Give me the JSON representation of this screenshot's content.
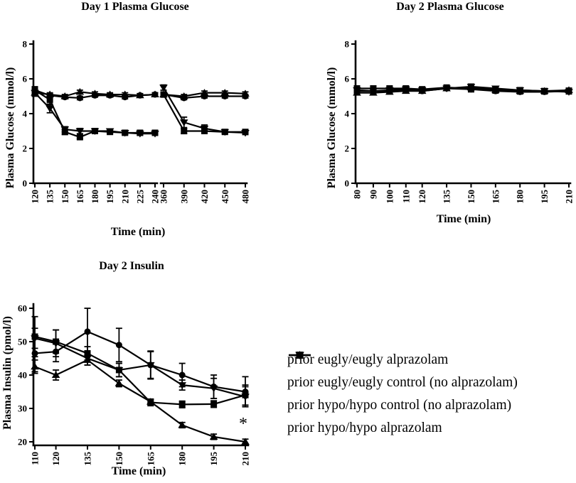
{
  "figure": {
    "background": "#ffffff",
    "line_color": "#000000"
  },
  "legend": {
    "items": [
      {
        "marker": "circle",
        "label": "prior eugly/eugly alprazolam"
      },
      {
        "marker": "triangle-up",
        "label": "prior eugly/eugly control (no alprazolam)"
      },
      {
        "marker": "triangle-down",
        "label": "prior hypo/hypo control (no alprazolam)"
      },
      {
        "marker": "square",
        "label": "prior hypo/hypo alprazolam"
      }
    ]
  },
  "chart_data": [
    {
      "id": "day1-plasma-glucose",
      "type": "line",
      "title": "Day 1 Plasma Glucose",
      "xlabel": "Time (min)",
      "ylabel": "Plasma Glucose (mmol/l)",
      "ylim": [
        0,
        8
      ],
      "yticks": [
        0,
        2,
        4,
        6,
        8
      ],
      "x_axis_break": true,
      "x_segments": [
        [
          120,
          135,
          150,
          165,
          180,
          195,
          210,
          225,
          240
        ],
        [
          360,
          390,
          420,
          450,
          480
        ]
      ],
      "series": [
        {
          "name": "prior eugly/eugly alprazolam",
          "marker": "circle",
          "y": [
            [
              5.35,
              5.05,
              4.95,
              4.9,
              5.05,
              5.05,
              4.95,
              5.05,
              5.1
            ],
            [
              5.1,
              4.9,
              5.0,
              5.0,
              5.0
            ]
          ],
          "err": [
            [
              0.15,
              0.1,
              0.1,
              0.1,
              0.1,
              0.1,
              0.1,
              0.1,
              0.1
            ],
            [
              0.1,
              0.1,
              0.1,
              0.1,
              0.1
            ]
          ]
        },
        {
          "name": "prior eugly/eugly control (no alprazolam)",
          "marker": "triangle-up",
          "y": [
            [
              5.2,
              5.1,
              5.0,
              5.25,
              5.15,
              5.1,
              5.1,
              5.05,
              5.1
            ],
            [
              5.1,
              5.0,
              5.2,
              5.2,
              5.15
            ]
          ],
          "err": [
            [
              0.15,
              0.1,
              0.1,
              0.1,
              0.1,
              0.1,
              0.1,
              0.1,
              0.1
            ],
            [
              0.1,
              0.1,
              0.1,
              0.1,
              0.1
            ]
          ]
        },
        {
          "name": "prior hypo/hypo control (no alprazolam)",
          "marker": "triangle-down",
          "y": [
            [
              5.2,
              4.3,
              3.1,
              3.0,
              3.0,
              3.0,
              2.9,
              2.85,
              2.85
            ],
            [
              5.5,
              3.5,
              3.15,
              2.95,
              2.9
            ]
          ],
          "err": [
            [
              0.2,
              0.25,
              0.15,
              0.15,
              0.1,
              0.1,
              0.1,
              0.1,
              0.1
            ],
            [
              0.15,
              0.3,
              0.2,
              0.1,
              0.1
            ]
          ]
        },
        {
          "name": "prior hypo/hypo alprazolam",
          "marker": "square",
          "y": [
            [
              5.35,
              4.8,
              2.95,
              2.65,
              3.0,
              2.95,
              2.9,
              2.9,
              2.9
            ],
            [
              5.1,
              3.0,
              3.0,
              2.95,
              2.95
            ]
          ],
          "err": [
            [
              0.2,
              0.3,
              0.15,
              0.1,
              0.1,
              0.1,
              0.1,
              0.1,
              0.1
            ],
            [
              0.15,
              0.15,
              0.1,
              0.1,
              0.1
            ]
          ]
        }
      ]
    },
    {
      "id": "day2-plasma-glucose",
      "type": "line",
      "title": "Day 2 Plasma Glucose",
      "xlabel": "Time (min)",
      "ylabel": "Plasma Glucose (mmol/l)",
      "ylim": [
        0,
        8
      ],
      "yticks": [
        0,
        2,
        4,
        6,
        8
      ],
      "x_axis_break": false,
      "x_segments": [
        [
          80,
          90,
          100,
          110,
          120,
          135,
          150,
          165,
          180,
          195,
          210
        ]
      ],
      "series": [
        {
          "name": "prior eugly/eugly alprazolam",
          "marker": "circle",
          "y": [
            [
              5.3,
              5.3,
              5.3,
              5.35,
              5.3,
              5.45,
              5.4,
              5.3,
              5.25,
              5.25,
              5.3
            ]
          ],
          "err": [
            [
              0.12,
              0.12,
              0.12,
              0.12,
              0.12,
              0.12,
              0.12,
              0.12,
              0.12,
              0.12,
              0.12
            ]
          ]
        },
        {
          "name": "prior eugly/eugly control (no alprazolam)",
          "marker": "triangle-up",
          "y": [
            [
              5.2,
              5.2,
              5.25,
              5.3,
              5.3,
              5.45,
              5.5,
              5.35,
              5.3,
              5.3,
              5.35
            ]
          ],
          "err": [
            [
              0.12,
              0.12,
              0.12,
              0.12,
              0.12,
              0.12,
              0.12,
              0.12,
              0.12,
              0.12,
              0.12
            ]
          ]
        },
        {
          "name": "prior hypo/hypo control (no alprazolam)",
          "marker": "triangle-down",
          "y": [
            [
              5.35,
              5.3,
              5.35,
              5.4,
              5.35,
              5.45,
              5.55,
              5.45,
              5.35,
              5.3,
              5.25
            ]
          ],
          "err": [
            [
              0.12,
              0.12,
              0.12,
              0.12,
              0.12,
              0.12,
              0.15,
              0.12,
              0.12,
              0.12,
              0.12
            ]
          ]
        },
        {
          "name": "prior hypo/hypo alprazolam",
          "marker": "square",
          "y": [
            [
              5.45,
              5.45,
              5.45,
              5.45,
              5.4,
              5.5,
              5.45,
              5.4,
              5.35,
              5.3,
              5.3
            ]
          ],
          "err": [
            [
              0.12,
              0.12,
              0.12,
              0.12,
              0.12,
              0.12,
              0.2,
              0.12,
              0.12,
              0.12,
              0.12
            ]
          ]
        }
      ]
    },
    {
      "id": "day2-insulin",
      "type": "line",
      "title": "Day 2 Insulin",
      "xlabel": "Time (min)",
      "ylabel": "Plasma Insulin (pmol/l)",
      "ylim": [
        20,
        60
      ],
      "yticks": [
        20,
        30,
        40,
        50,
        60
      ],
      "x_axis_break": false,
      "x_segments": [
        [
          110,
          120,
          135,
          150,
          165,
          180,
          195,
          210
        ]
      ],
      "annotation": {
        "text": "*",
        "x": 209,
        "y": 25.5
      },
      "series": [
        {
          "name": "prior eugly/eugly alprazolam",
          "marker": "circle",
          "y": [
            [
              46.5,
              47.0,
              53.0,
              49.0,
              43.0,
              40.0,
              36.5,
              35.0
            ]
          ],
          "err": [
            [
              5.5,
              3.0,
              7.0,
              5.0,
              4.0,
              3.5,
              3.5,
              4.5
            ]
          ]
        },
        {
          "name": "prior eugly/eugly control (no alprazolam)",
          "marker": "triangle-up",
          "y": [
            [
              42.5,
              40.0,
              44.5,
              37.5,
              32.0,
              25.0,
              21.5,
              20.0
            ]
          ],
          "err": [
            [
              2.0,
              1.5,
              1.5,
              1.0,
              0.8,
              0.8,
              0.8,
              0.8
            ]
          ]
        },
        {
          "name": "prior hypo/hypo control (no alprazolam)",
          "marker": "triangle-down",
          "y": [
            [
              51.0,
              49.5,
              45.0,
              41.5,
              43.0,
              37.0,
              36.0,
              33.5
            ]
          ],
          "err": [
            [
              3.0,
              4.0,
              2.0,
              2.0,
              4.2,
              1.5,
              3.0,
              3.0
            ]
          ]
        },
        {
          "name": "prior hypo/hypo alprazolam",
          "marker": "square",
          "y": [
            [
              51.5,
              50.0,
              46.5,
              41.5,
              31.8,
              31.2,
              31.3,
              34.0
            ]
          ],
          "err": [
            [
              6.0,
              3.5,
              2.0,
              2.0,
              1.0,
              1.0,
              1.0,
              3.0
            ]
          ]
        }
      ]
    }
  ]
}
